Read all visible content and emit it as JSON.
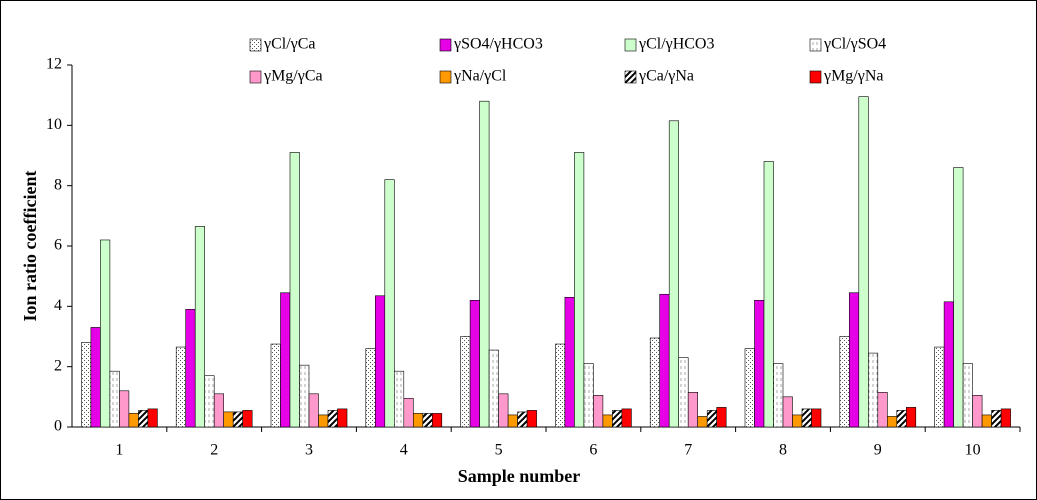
{
  "chart_data": {
    "type": "bar",
    "xlabel": "Sample number",
    "ylabel": "Ion ratio coefficient",
    "categories": [
      "1",
      "2",
      "3",
      "4",
      "5",
      "6",
      "7",
      "8",
      "9",
      "10"
    ],
    "ylim": [
      0,
      12
    ],
    "yticks": [
      0,
      2,
      4,
      6,
      8,
      10,
      12
    ],
    "series": [
      {
        "name": "γCl/γCa",
        "color": "#555555",
        "pattern": "dots",
        "values": [
          2.8,
          2.65,
          2.75,
          2.6,
          3.0,
          2.75,
          2.95,
          2.6,
          3.0,
          2.65
        ]
      },
      {
        "name": "γSO4/γHCO3",
        "color": "#e600e6",
        "values": [
          3.3,
          3.9,
          4.45,
          4.35,
          4.2,
          4.3,
          4.4,
          4.2,
          4.45,
          4.15
        ]
      },
      {
        "name": "γCl/γHCO3",
        "color": "#ccffcc",
        "values": [
          6.2,
          6.65,
          9.1,
          8.2,
          10.8,
          9.1,
          10.15,
          8.8,
          10.95,
          8.6
        ]
      },
      {
        "name": "γCl/γSO4",
        "color": "#aaaaaa",
        "pattern": "dashes",
        "values": [
          1.85,
          1.7,
          2.05,
          1.85,
          2.55,
          2.1,
          2.3,
          2.1,
          2.45,
          2.1
        ]
      },
      {
        "name": "γMg/γCa",
        "color": "#ff99cc",
        "values": [
          1.2,
          1.1,
          1.1,
          0.95,
          1.1,
          1.05,
          1.15,
          1.0,
          1.15,
          1.05
        ]
      },
      {
        "name": "γNa/γCl",
        "color": "#ff9900",
        "values": [
          0.45,
          0.5,
          0.4,
          0.45,
          0.4,
          0.4,
          0.35,
          0.4,
          0.35,
          0.4
        ]
      },
      {
        "name": "γCa/γNa",
        "color": "#000000",
        "pattern": "stripes",
        "values": [
          0.55,
          0.5,
          0.55,
          0.45,
          0.5,
          0.55,
          0.55,
          0.6,
          0.55,
          0.55
        ]
      },
      {
        "name": "γMg/γNa",
        "color": "#ff0000",
        "values": [
          0.6,
          0.55,
          0.6,
          0.45,
          0.55,
          0.6,
          0.65,
          0.6,
          0.65,
          0.6
        ]
      }
    ]
  }
}
